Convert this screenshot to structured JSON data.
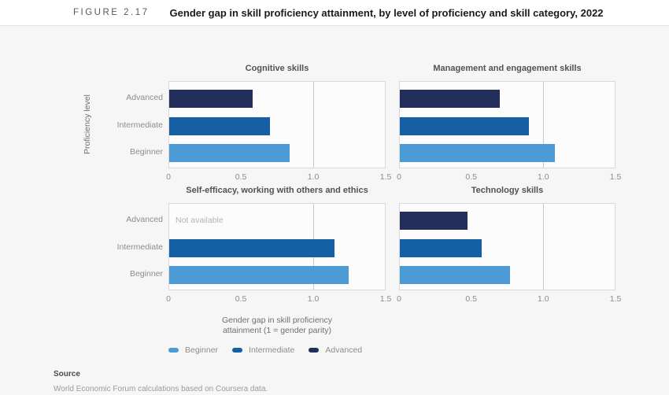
{
  "header": {
    "figure_label": "FIGURE 2.17",
    "title": "Gender gap in skill proficiency attainment, by level of proficiency and skill category, 2022"
  },
  "chart_data": {
    "type": "bar",
    "orientation": "horizontal",
    "row_categories": [
      "Advanced",
      "Intermediate",
      "Beginner"
    ],
    "xlim": [
      0,
      1.5
    ],
    "xticks": [
      "0",
      "0.5",
      "1.0",
      "1.5"
    ],
    "xtick_values": [
      0,
      0.5,
      1.0,
      1.5
    ],
    "parity_line_x": 1.0,
    "grid": "parity-line-only",
    "ylabel": "Proficiency level",
    "xlabel": "Gender gap in skill proficiency attainment (1 = gender parity)",
    "xlabel_lines": [
      "Gender gap in skill proficiency",
      "attainment (1 = gender parity)"
    ],
    "panels": [
      {
        "title": "Cognitive skills",
        "series": [
          {
            "level": "Advanced",
            "value": 0.58
          },
          {
            "level": "Intermediate",
            "value": 0.7
          },
          {
            "level": "Beginner",
            "value": 0.84
          }
        ]
      },
      {
        "title": "Management and engagement skills",
        "series": [
          {
            "level": "Advanced",
            "value": 0.7
          },
          {
            "level": "Intermediate",
            "value": 0.9
          },
          {
            "level": "Beginner",
            "value": 1.08
          }
        ]
      },
      {
        "title": "Self-efficacy, working with others and ethics",
        "series": [
          {
            "level": "Advanced",
            "value": null,
            "note": "Not available"
          },
          {
            "level": "Intermediate",
            "value": 1.15
          },
          {
            "level": "Beginner",
            "value": 1.25
          }
        ]
      },
      {
        "title": "Technology skills",
        "series": [
          {
            "level": "Advanced",
            "value": 0.47
          },
          {
            "level": "Intermediate",
            "value": 0.57
          },
          {
            "level": "Beginner",
            "value": 0.77
          }
        ]
      }
    ],
    "legend": [
      {
        "label": "Beginner",
        "color": "#4d9bd5"
      },
      {
        "label": "Intermediate",
        "color": "#1560a5"
      },
      {
        "label": "Advanced",
        "color": "#232e5a"
      }
    ],
    "level_colors": {
      "Beginner": "#4d9bd5",
      "Intermediate": "#1560a5",
      "Advanced": "#232e5a"
    },
    "legend_position": "bottom-left"
  },
  "source": {
    "label": "Source",
    "text": "World Economic Forum calculations based on Coursera data."
  }
}
